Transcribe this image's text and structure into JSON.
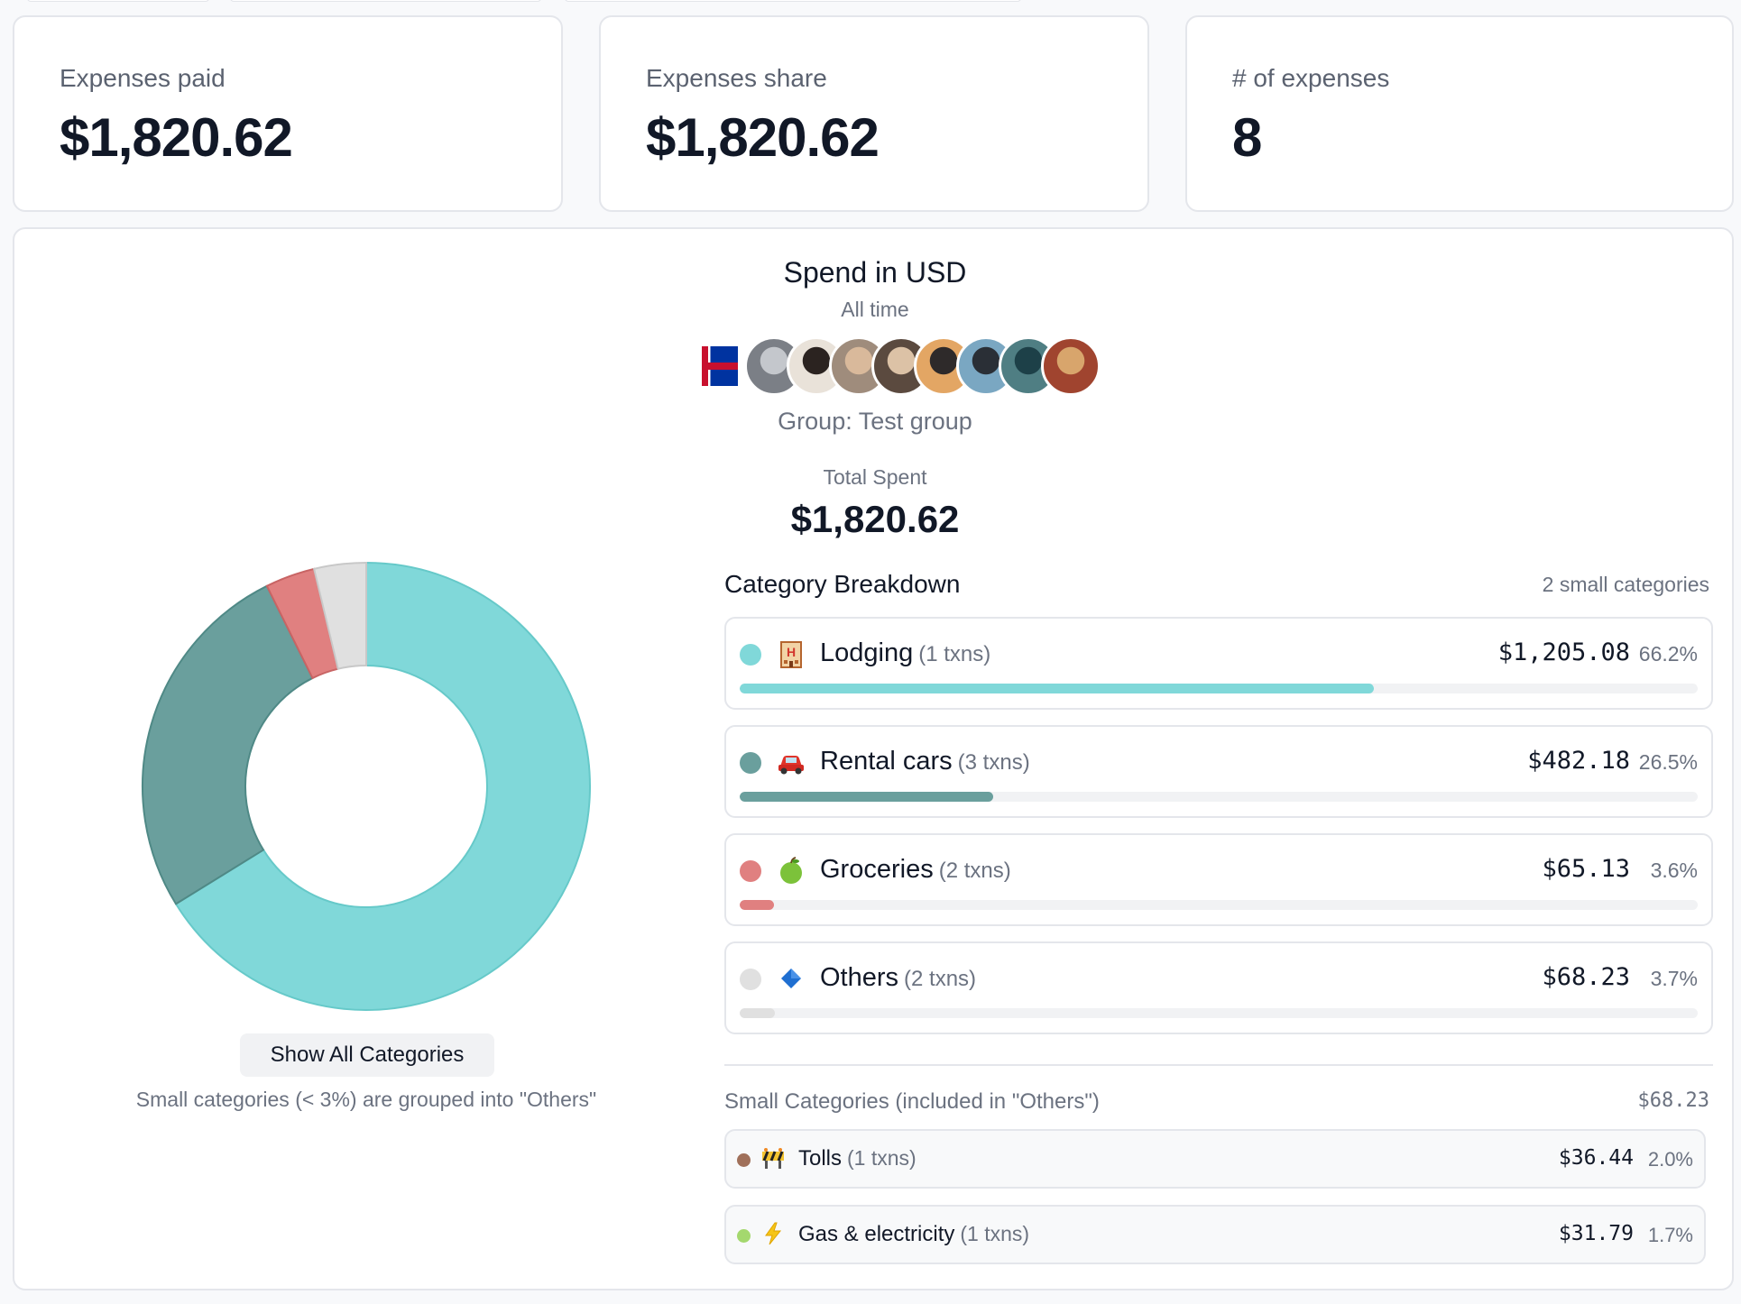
{
  "stats": [
    {
      "label": "Expenses paid",
      "value": "$1,820.62"
    },
    {
      "label": "Expenses share",
      "value": "$1,820.62"
    },
    {
      "label": "# of expenses",
      "value": "8"
    }
  ],
  "header": {
    "title": "Spend in USD",
    "subtitle": "All time",
    "group": "Group: Test group",
    "total_label": "Total Spent",
    "total_value": "$1,820.62"
  },
  "avatars": [
    {
      "name": "flag-avatar-icon",
      "colors": [
        "#c8102e",
        "#0033a0",
        "#ffffff"
      ]
    },
    {
      "name": "avatar-1",
      "colors": [
        "#7b7f86",
        "#c4c7cc"
      ]
    },
    {
      "name": "avatar-2",
      "colors": [
        "#e9e2d9",
        "#2b2320"
      ]
    },
    {
      "name": "avatar-3",
      "colors": [
        "#9f8c7c",
        "#d9b99b"
      ]
    },
    {
      "name": "avatar-4",
      "colors": [
        "#5b4a3f",
        "#dcc2a6"
      ]
    },
    {
      "name": "avatar-5",
      "colors": [
        "#e3a664",
        "#2e2a2a"
      ]
    },
    {
      "name": "avatar-6",
      "colors": [
        "#7aa7c2",
        "#2a2f36"
      ]
    },
    {
      "name": "avatar-7",
      "colors": [
        "#4f7e83",
        "#1d4048"
      ]
    },
    {
      "name": "avatar-8",
      "colors": [
        "#a0442f",
        "#d8a56c"
      ]
    }
  ],
  "chart_data": {
    "type": "pie",
    "title": "Spend in USD",
    "slices": [
      {
        "label": "Lodging",
        "value": 1205.08,
        "percent": 66.2,
        "color": "#80d8d9"
      },
      {
        "label": "Rental cars",
        "value": 482.18,
        "percent": 26.5,
        "color": "#6a9f9d"
      },
      {
        "label": "Groceries",
        "value": 65.13,
        "percent": 3.6,
        "color": "#e08080"
      },
      {
        "label": "Others",
        "value": 68.23,
        "percent": 3.7,
        "color": "#e0e0e0"
      }
    ]
  },
  "controls": {
    "show_all_label": "Show All Categories",
    "note": "Small categories (< 3%) are grouped into \"Others\""
  },
  "breakdown": {
    "title": "Category Breakdown",
    "count_label": "2 small categories",
    "rows": [
      {
        "name": "Lodging",
        "txns": "(1 txns)",
        "amount": "$1,205.08",
        "pct": "66.2%",
        "fraction": 0.662,
        "color": "#80d8d9",
        "icon": "hotel-icon"
      },
      {
        "name": "Rental cars",
        "txns": "(3 txns)",
        "amount": "$482.18",
        "pct": "26.5%",
        "fraction": 0.265,
        "color": "#6a9f9d",
        "icon": "car-icon"
      },
      {
        "name": "Groceries",
        "txns": "(2 txns)",
        "amount": "$65.13",
        "pct": "3.6%",
        "fraction": 0.036,
        "color": "#e08080",
        "icon": "apple-icon"
      },
      {
        "name": "Others",
        "txns": "(2 txns)",
        "amount": "$68.23",
        "pct": "3.7%",
        "fraction": 0.037,
        "color": "#e0e0e0",
        "icon": "diamond-icon"
      }
    ]
  },
  "small": {
    "title": "Small Categories (included in \"Others\")",
    "total": "$68.23",
    "rows": [
      {
        "name": "Tolls",
        "txns": "(1 txns)",
        "amount": "$36.44",
        "pct": "2.0%",
        "color": "#a0705a",
        "icon": "construction-icon"
      },
      {
        "name": "Gas & electricity",
        "txns": "(1 txns)",
        "amount": "$31.79",
        "pct": "1.7%",
        "color": "#a4d86e",
        "icon": "lightning-icon"
      }
    ]
  }
}
